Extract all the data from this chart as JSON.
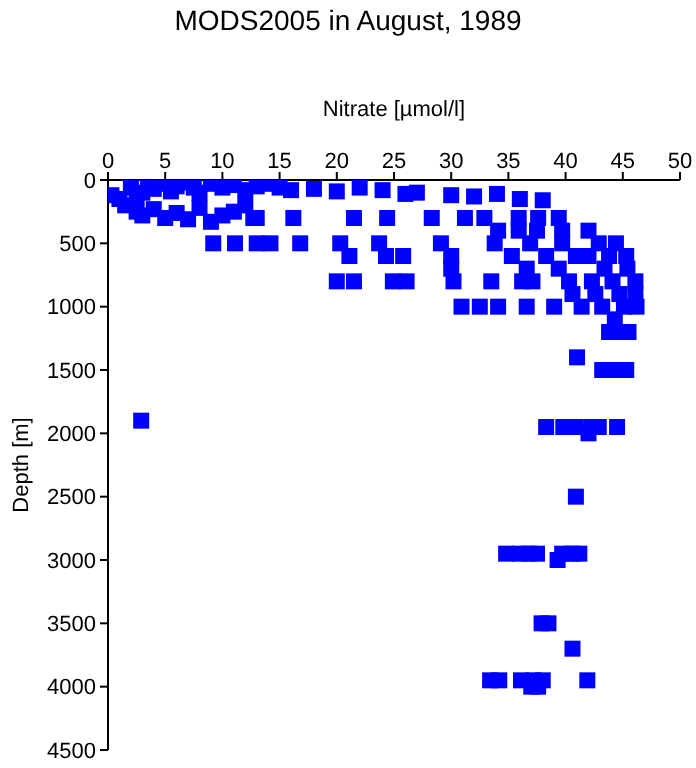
{
  "chart_data": {
    "type": "scatter",
    "title": "MODS2005 in August, 1989",
    "xlabel": "Nitrate [µmol/l]",
    "ylabel": "Depth [m]",
    "xlim": [
      0,
      50
    ],
    "xticks": [
      0,
      5,
      10,
      15,
      20,
      25,
      30,
      35,
      40,
      45,
      50
    ],
    "ylim": [
      4500,
      0
    ],
    "yticks": [
      0,
      500,
      1000,
      1500,
      2000,
      2500,
      3000,
      3500,
      4000,
      4500
    ],
    "marker": "square",
    "grid": false,
    "legend": false,
    "series": [
      {
        "color": "#0000ff",
        "x": [
          2,
          0.3,
          1,
          2.5,
          3,
          3.5,
          4,
          5,
          5.5,
          6,
          7,
          7.5,
          8,
          9,
          10,
          11,
          12,
          13,
          14,
          15,
          1.5,
          2.5,
          3,
          4,
          5,
          6,
          7,
          8,
          9,
          10,
          11,
          12,
          13,
          16,
          18,
          20,
          22,
          24,
          26,
          27,
          30,
          32,
          34,
          36,
          38,
          12.7,
          16.2,
          21.5,
          24.4,
          28.3,
          31.2,
          32.9,
          35.9,
          37.6,
          39.4,
          34.1,
          35.9,
          37.5,
          39.7,
          42,
          9.2,
          11.1,
          13,
          14.2,
          16.8,
          20.3,
          23.7,
          29.1,
          33.8,
          36.9,
          39.7,
          42.9,
          44.4,
          21.1,
          24.3,
          25.8,
          30,
          35.3,
          38.3,
          40.9,
          42,
          43.8,
          45.3,
          30,
          36.6,
          39.4,
          43.4,
          45.4,
          20,
          21.5,
          24.9,
          26.1,
          30.2,
          33.5,
          36.2,
          37.1,
          40.3,
          42.3,
          44.1,
          46.1,
          40.6,
          42.6,
          44.7,
          46.1,
          30.9,
          32.5,
          34.1,
          36.6,
          39,
          41.4,
          43.2,
          45.1,
          46.2,
          44.3,
          43.8,
          44.7,
          45.5,
          41,
          43.2,
          44.4,
          45.3,
          2.9,
          38.3,
          39.8,
          40.9,
          42.3,
          42.9,
          44.5,
          42,
          40.9,
          34.8,
          36,
          36.8,
          37.5,
          40.6,
          41.2,
          39.3,
          39.7,
          37.9,
          38.5,
          40.6,
          33.4,
          34.2,
          36.1,
          37.2,
          38,
          41.9,
          37,
          37.6
        ],
        "values": [
          60,
          120,
          150,
          130,
          100,
          40,
          70,
          30,
          90,
          50,
          20,
          60,
          100,
          30,
          60,
          40,
          80,
          50,
          30,
          60,
          200,
          250,
          280,
          230,
          300,
          260,
          310,
          220,
          330,
          280,
          250,
          200,
          300,
          80,
          70,
          90,
          60,
          80,
          110,
          100,
          120,
          130,
          110,
          150,
          160,
          300,
          300,
          300,
          300,
          300,
          300,
          300,
          300,
          300,
          300,
          400,
          400,
          400,
          400,
          400,
          500,
          500,
          500,
          500,
          500,
          500,
          500,
          500,
          500,
          500,
          500,
          500,
          500,
          600,
          600,
          600,
          600,
          600,
          600,
          600,
          600,
          600,
          600,
          700,
          700,
          700,
          700,
          700,
          800,
          800,
          800,
          800,
          800,
          800,
          800,
          800,
          800,
          800,
          800,
          800,
          900,
          900,
          900,
          900,
          1000,
          1000,
          1000,
          1000,
          1000,
          1000,
          1000,
          1000,
          1000,
          1100,
          1200,
          1200,
          1200,
          1400,
          1500,
          1500,
          1500,
          1900,
          1950,
          1950,
          1950,
          1950,
          1950,
          1950,
          2000,
          2500,
          2950,
          2950,
          2950,
          2950,
          2950,
          2950,
          3000,
          2950,
          3500,
          3500,
          3700,
          3950,
          3950,
          3950,
          3950,
          3950,
          3950,
          4000,
          4000
        ]
      }
    ]
  }
}
